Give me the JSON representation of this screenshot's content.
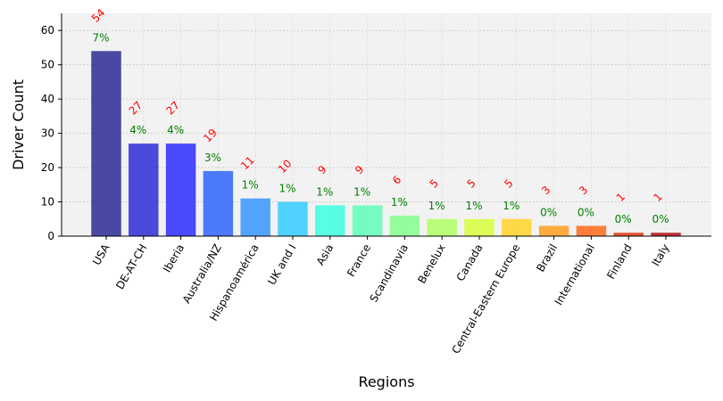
{
  "chart_data": {
    "type": "bar",
    "title": "",
    "xlabel": "Regions",
    "ylabel": "Driver Count",
    "ylim": [
      0,
      65
    ],
    "yticks": [
      0,
      10,
      20,
      30,
      40,
      50,
      60
    ],
    "grid": true,
    "categories": [
      "USA",
      "DE-AT-CH",
      "Iberia",
      "Australia/NZ",
      "Hispanoamérica",
      "UK and I",
      "Asia",
      "France",
      "Scandinavia",
      "Benelux",
      "Canada",
      "Central-Eastern Europe",
      "Brazil",
      "International",
      "Finland",
      "Italy"
    ],
    "values": [
      54,
      27,
      27,
      19,
      11,
      10,
      9,
      9,
      6,
      5,
      5,
      5,
      3,
      3,
      1,
      1
    ],
    "percent_labels": [
      "7%",
      "4%",
      "4%",
      "3%",
      "1%",
      "1%",
      "1%",
      "1%",
      "1%",
      "1%",
      "1%",
      "1%",
      "0%",
      "0%",
      "0%",
      "0%"
    ],
    "colors": [
      "#2b2b95",
      "#2d2dd8",
      "#2b2bff",
      "#3064ff",
      "#3896ff",
      "#33cdff",
      "#3dffe0",
      "#5fffb8",
      "#86ff8f",
      "#b0ff66",
      "#d8ff3c",
      "#ffd52a",
      "#ff9f20",
      "#ff6a1b",
      "#e03612",
      "#b3121a"
    ]
  }
}
